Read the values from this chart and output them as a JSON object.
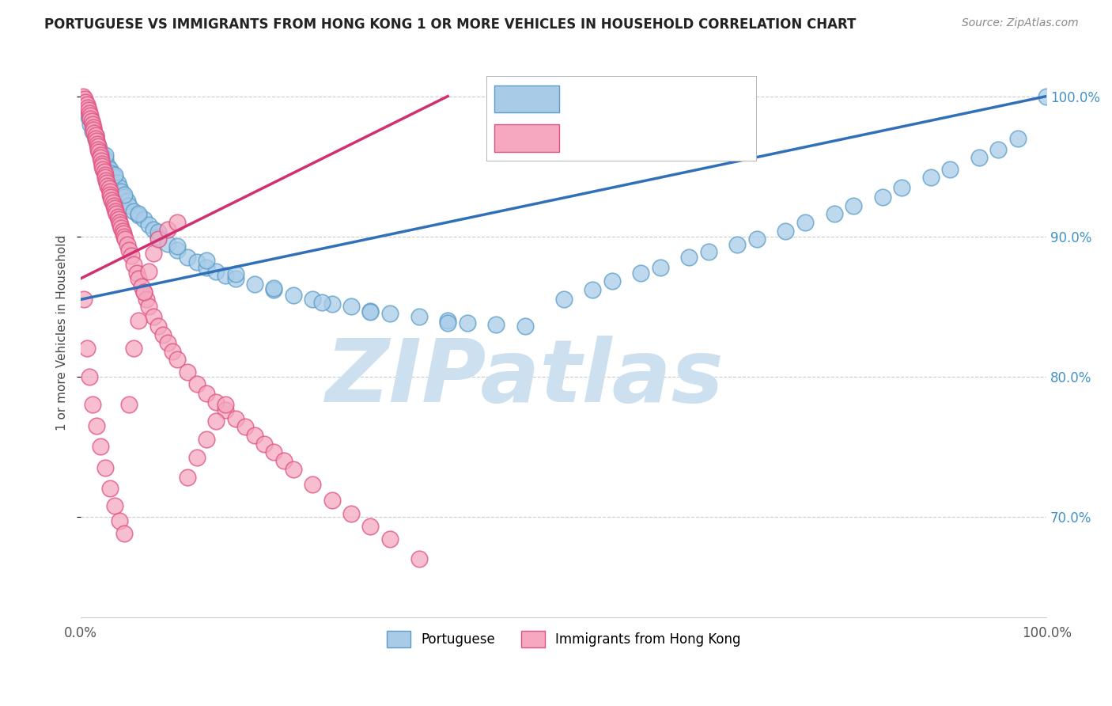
{
  "title": "PORTUGUESE VS IMMIGRANTS FROM HONG KONG 1 OR MORE VEHICLES IN HOUSEHOLD CORRELATION CHART",
  "source": "Source: ZipAtlas.com",
  "ylabel": "1 or more Vehicles in Household",
  "blue_color": "#a8cce8",
  "blue_edge": "#5a9dc8",
  "pink_color": "#f5a8c0",
  "pink_edge": "#e05080",
  "blue_line_color": "#3070b8",
  "pink_line_color": "#d03070",
  "watermark": "ZIPatlas",
  "watermark_color": "#d8eaf8",
  "portuguese_x": [
    0.005,
    0.008,
    0.01,
    0.012,
    0.015,
    0.018,
    0.02,
    0.022,
    0.025,
    0.028,
    0.03,
    0.032,
    0.035,
    0.038,
    0.04,
    0.042,
    0.045,
    0.048,
    0.05,
    0.055,
    0.06,
    0.065,
    0.07,
    0.075,
    0.08,
    0.09,
    0.1,
    0.11,
    0.12,
    0.13,
    0.14,
    0.15,
    0.16,
    0.18,
    0.2,
    0.22,
    0.24,
    0.26,
    0.28,
    0.3,
    0.32,
    0.35,
    0.38,
    0.4,
    0.43,
    0.46,
    0.5,
    0.53,
    0.55,
    0.58,
    0.6,
    0.63,
    0.65,
    0.68,
    0.7,
    0.73,
    0.75,
    0.78,
    0.8,
    0.83,
    0.85,
    0.88,
    0.9,
    0.93,
    0.95,
    0.97,
    1.0,
    0.007,
    0.015,
    0.025,
    0.035,
    0.045,
    0.06,
    0.08,
    0.1,
    0.13,
    0.16,
    0.2,
    0.25,
    0.3,
    0.38
  ],
  "portuguese_y": [
    0.99,
    0.985,
    0.98,
    0.975,
    0.97,
    0.965,
    0.96,
    0.958,
    0.955,
    0.95,
    0.948,
    0.945,
    0.942,
    0.938,
    0.935,
    0.932,
    0.928,
    0.925,
    0.922,
    0.918,
    0.915,
    0.912,
    0.908,
    0.905,
    0.9,
    0.895,
    0.89,
    0.885,
    0.882,
    0.878,
    0.875,
    0.872,
    0.87,
    0.866,
    0.862,
    0.858,
    0.855,
    0.852,
    0.85,
    0.847,
    0.845,
    0.843,
    0.84,
    0.838,
    0.837,
    0.836,
    0.855,
    0.862,
    0.868,
    0.874,
    0.878,
    0.885,
    0.889,
    0.894,
    0.898,
    0.904,
    0.91,
    0.916,
    0.922,
    0.928,
    0.935,
    0.942,
    0.948,
    0.956,
    0.962,
    0.97,
    1.0,
    0.988,
    0.972,
    0.958,
    0.944,
    0.93,
    0.916,
    0.903,
    0.893,
    0.883,
    0.873,
    0.863,
    0.853,
    0.846,
    0.838
  ],
  "hk_x": [
    0.002,
    0.004,
    0.005,
    0.006,
    0.007,
    0.008,
    0.009,
    0.01,
    0.01,
    0.011,
    0.012,
    0.013,
    0.013,
    0.014,
    0.015,
    0.015,
    0.016,
    0.017,
    0.018,
    0.018,
    0.019,
    0.02,
    0.02,
    0.021,
    0.022,
    0.022,
    0.023,
    0.024,
    0.025,
    0.025,
    0.026,
    0.027,
    0.028,
    0.029,
    0.03,
    0.03,
    0.031,
    0.032,
    0.033,
    0.034,
    0.035,
    0.036,
    0.037,
    0.038,
    0.039,
    0.04,
    0.041,
    0.042,
    0.043,
    0.044,
    0.045,
    0.046,
    0.048,
    0.05,
    0.052,
    0.055,
    0.058,
    0.06,
    0.063,
    0.065,
    0.068,
    0.07,
    0.075,
    0.08,
    0.085,
    0.09,
    0.095,
    0.1,
    0.11,
    0.12,
    0.13,
    0.14,
    0.15,
    0.16,
    0.17,
    0.18,
    0.19,
    0.2,
    0.21,
    0.22,
    0.24,
    0.26,
    0.28,
    0.3,
    0.32,
    0.35,
    0.003,
    0.006,
    0.009,
    0.012,
    0.016,
    0.02,
    0.025,
    0.03,
    0.035,
    0.04,
    0.045,
    0.05,
    0.055,
    0.06,
    0.065,
    0.07,
    0.075,
    0.08,
    0.09,
    0.1,
    0.11,
    0.12,
    0.13,
    0.14,
    0.15
  ],
  "hk_y": [
    1.0,
    0.998,
    0.996,
    0.994,
    0.992,
    0.99,
    0.988,
    0.986,
    0.984,
    0.982,
    0.98,
    0.978,
    0.976,
    0.974,
    0.972,
    0.97,
    0.968,
    0.966,
    0.964,
    0.962,
    0.96,
    0.958,
    0.956,
    0.954,
    0.952,
    0.95,
    0.948,
    0.946,
    0.944,
    0.942,
    0.94,
    0.938,
    0.936,
    0.934,
    0.932,
    0.93,
    0.928,
    0.926,
    0.924,
    0.922,
    0.92,
    0.918,
    0.916,
    0.914,
    0.912,
    0.91,
    0.908,
    0.906,
    0.904,
    0.902,
    0.9,
    0.898,
    0.894,
    0.89,
    0.886,
    0.88,
    0.874,
    0.87,
    0.864,
    0.86,
    0.855,
    0.85,
    0.843,
    0.836,
    0.83,
    0.824,
    0.818,
    0.812,
    0.803,
    0.795,
    0.788,
    0.782,
    0.776,
    0.77,
    0.764,
    0.758,
    0.752,
    0.746,
    0.74,
    0.734,
    0.723,
    0.712,
    0.702,
    0.693,
    0.684,
    0.67,
    0.855,
    0.82,
    0.8,
    0.78,
    0.765,
    0.75,
    0.735,
    0.72,
    0.708,
    0.697,
    0.688,
    0.78,
    0.82,
    0.84,
    0.86,
    0.875,
    0.888,
    0.898,
    0.905,
    0.91,
    0.728,
    0.742,
    0.755,
    0.768,
    0.78
  ],
  "blue_trend_x": [
    0.0,
    1.0
  ],
  "blue_trend_y": [
    0.855,
    1.0
  ],
  "pink_trend_x": [
    0.0,
    0.38
  ],
  "pink_trend_y": [
    0.87,
    1.0
  ],
  "xlim": [
    0.0,
    1.0
  ],
  "ylim": [
    0.628,
    1.035
  ],
  "yticks": [
    0.7,
    0.8,
    0.9,
    1.0
  ],
  "ytick_labels": [
    "70.0%",
    "80.0%",
    "90.0%",
    "100.0%"
  ]
}
